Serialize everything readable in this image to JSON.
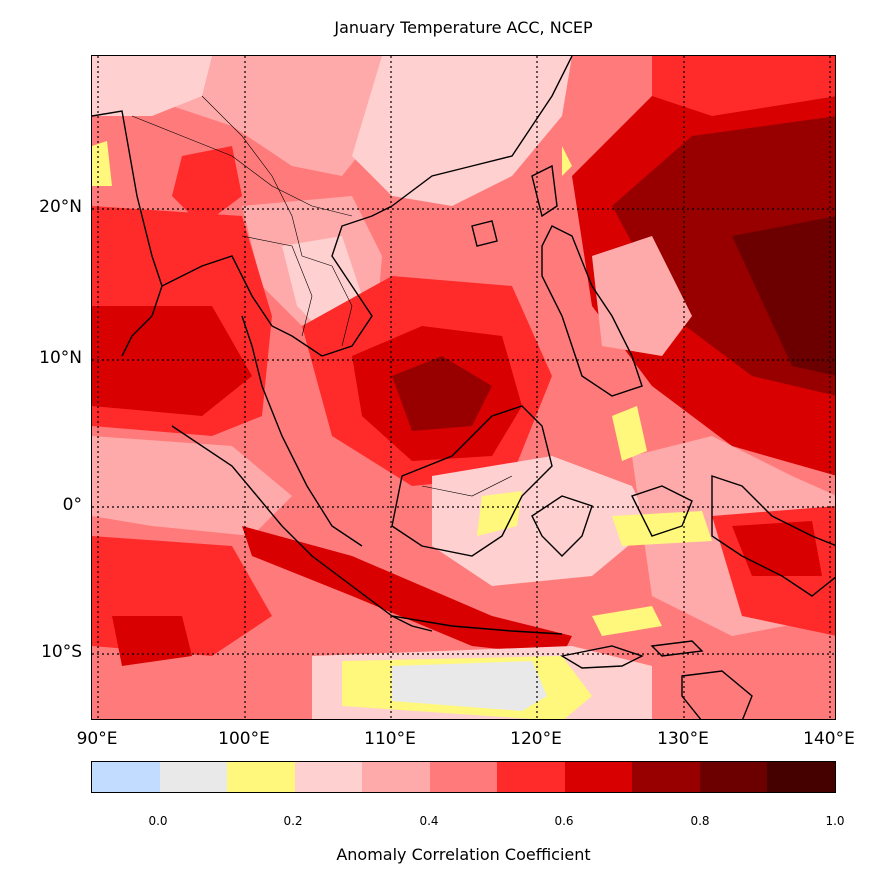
{
  "title": "January Temperature ACC, NCEP",
  "lat_labels": [
    "20°N",
    "10°N",
    "0°",
    "10°S"
  ],
  "lon_labels": [
    "90°E",
    "100°E",
    "110°E",
    "120°E",
    "130°E",
    "140°E"
  ],
  "colorbar": {
    "label": "Anomaly Correlation Coefficient",
    "ticks": [
      "0.0",
      "0.2",
      "0.4",
      "0.6",
      "0.8",
      "1.0"
    ],
    "colors": [
      "#c2dcff",
      "#e9e9e9",
      "#fff87c",
      "#ffd0d0",
      "#ffaaaa",
      "#ff7b7b",
      "#ff2b2b",
      "#d80000",
      "#980000",
      "#6c0000",
      "#450000"
    ]
  },
  "map": {
    "lon_range": [
      90,
      140
    ],
    "lat_range": [
      -14.5,
      30
    ],
    "gridlines": "dotted"
  }
}
